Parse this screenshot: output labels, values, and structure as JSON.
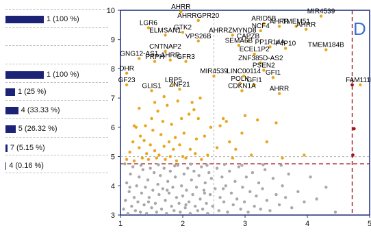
{
  "summary_bars": [
    {
      "label": "1 (100 %)",
      "fraction": 1.0
    },
    {
      "label": "1 (100 %)",
      "fraction": 1.0
    },
    {
      "label": "1 (25 %)",
      "fraction": 0.25
    },
    {
      "label": "4 (33.33 %)",
      "fraction": 0.3333
    },
    {
      "label": "5 (26.32 %)",
      "fraction": 0.2632
    },
    {
      "label": "7 (5.15 %)",
      "fraction": 0.0515
    },
    {
      "label": "4 (0.16 %)",
      "fraction": 0.0016
    }
  ],
  "chart_data": {
    "type": "scatter",
    "panel_label": "D",
    "xlim": [
      1,
      5
    ],
    "ylim": [
      3,
      10
    ],
    "x_ticks": [
      "1",
      "2",
      "3",
      "4",
      "5"
    ],
    "y_ticks": [
      "3",
      "4",
      "5",
      "6",
      "7",
      "8",
      "9",
      "10"
    ],
    "threshold_x": 4.72,
    "threshold_y": 4.75,
    "reference_x": 2.5,
    "reference_y": 5.0,
    "colors": {
      "labeled": "#e8a61b",
      "significant": "#e8a61b",
      "background": "#a8a8a8",
      "highlight": "#a01519",
      "threshold": "#a01519",
      "reference": "#b0b0b0",
      "frame": "#1a2a7a"
    },
    "labeled_points": [
      {
        "name": "AHRR",
        "x": 1.97,
        "y": 9.95
      },
      {
        "name": "AHRRGPR20",
        "x": 2.25,
        "y": 9.65
      },
      {
        "name": "LGR6",
        "x": 1.45,
        "y": 9.4
      },
      {
        "name": "ELMSAN1",
        "x": 1.72,
        "y": 9.15
      },
      {
        "name": "GTK2",
        "x": 2.0,
        "y": 9.25
      },
      {
        "name": "VPS26B",
        "x": 2.25,
        "y": 8.95
      },
      {
        "name": "AHRRZMYND8",
        "x": 2.8,
        "y": 9.15
      },
      {
        "name": "ARID5B",
        "x": 3.3,
        "y": 9.55
      },
      {
        "name": "AHRR",
        "x": 3.55,
        "y": 9.45
      },
      {
        "name": "NCF4",
        "x": 3.25,
        "y": 9.3
      },
      {
        "name": "TMEM51",
        "x": 3.82,
        "y": 9.45
      },
      {
        "name": "AHRR",
        "x": 3.98,
        "y": 9.35
      },
      {
        "name": "MIR4539",
        "x": 4.22,
        "y": 9.8
      },
      {
        "name": "CAPZB",
        "x": 3.05,
        "y": 8.95
      },
      {
        "name": "SEMA6B",
        "x": 2.9,
        "y": 8.8
      },
      {
        "name": "PP1R14A",
        "x": 3.4,
        "y": 8.75
      },
      {
        "name": "P4P10",
        "x": 3.65,
        "y": 8.7
      },
      {
        "name": "ECEL1P2",
        "x": 3.15,
        "y": 8.5
      },
      {
        "name": "TMEM184B",
        "x": 4.3,
        "y": 8.65
      },
      {
        "name": "CNTNAP2",
        "x": 1.72,
        "y": 8.6
      },
      {
        "name": "GNG12-AS1",
        "x": 1.3,
        "y": 8.35
      },
      {
        "name": "PRPH",
        "x": 1.55,
        "y": 8.25
      },
      {
        "name": "AHRR",
        "x": 1.8,
        "y": 8.3
      },
      {
        "name": "GFR3",
        "x": 2.05,
        "y": 8.25
      },
      {
        "name": "ZNF385D-AS2",
        "x": 3.25,
        "y": 8.2
      },
      {
        "name": "PSEN2",
        "x": 3.3,
        "y": 7.95
      },
      {
        "name": "DHR",
        "x": 1.1,
        "y": 7.85
      },
      {
        "name": "MIR4539",
        "x": 2.5,
        "y": 7.75
      },
      {
        "name": "LINC00114",
        "x": 2.98,
        "y": 7.75
      },
      {
        "name": "GFI1",
        "x": 3.45,
        "y": 7.7
      },
      {
        "name": "POLK",
        "x": 2.92,
        "y": 7.5
      },
      {
        "name": "GFI1",
        "x": 3.15,
        "y": 7.45
      },
      {
        "name": "GF23",
        "x": 1.1,
        "y": 7.45
      },
      {
        "name": "LRP5",
        "x": 1.85,
        "y": 7.45
      },
      {
        "name": "ZNF21",
        "x": 1.95,
        "y": 7.3
      },
      {
        "name": "GLIS1",
        "x": 1.5,
        "y": 7.25
      },
      {
        "name": "CDKN1A",
        "x": 2.95,
        "y": 7.25
      },
      {
        "name": "AHRR",
        "x": 3.55,
        "y": 7.15
      },
      {
        "name": "FAM111B",
        "x": 4.85,
        "y": 7.45
      }
    ],
    "significant_points": [
      [
        1.1,
        4.9
      ],
      [
        1.15,
        5.15
      ],
      [
        1.2,
        5.5
      ],
      [
        1.22,
        4.85
      ],
      [
        1.25,
        6.0
      ],
      [
        1.3,
        5.3
      ],
      [
        1.32,
        5.7
      ],
      [
        1.35,
        4.95
      ],
      [
        1.38,
        5.55
      ],
      [
        1.4,
        6.05
      ],
      [
        1.42,
        5.1
      ],
      [
        1.45,
        4.9
      ],
      [
        1.48,
        5.4
      ],
      [
        1.5,
        6.3
      ],
      [
        1.52,
        5.9
      ],
      [
        1.55,
        5.2
      ],
      [
        1.58,
        4.95
      ],
      [
        1.6,
        6.55
      ],
      [
        1.62,
        5.05
      ],
      [
        1.65,
        5.75
      ],
      [
        1.68,
        6.2
      ],
      [
        1.7,
        5.35
      ],
      [
        1.72,
        4.9
      ],
      [
        1.75,
        6.75
      ],
      [
        1.78,
        5.5
      ],
      [
        1.8,
        5.0
      ],
      [
        1.82,
        6.1
      ],
      [
        1.85,
        5.25
      ],
      [
        1.88,
        5.65
      ],
      [
        1.9,
        4.85
      ],
      [
        1.92,
        6.9
      ],
      [
        1.95,
        5.4
      ],
      [
        1.98,
        6.3
      ],
      [
        2.0,
        5.0
      ],
      [
        2.02,
        5.8
      ],
      [
        2.05,
        4.95
      ],
      [
        2.1,
        6.45
      ],
      [
        2.12,
        5.25
      ],
      [
        2.15,
        6.85
      ],
      [
        2.2,
        5.1
      ],
      [
        2.22,
        5.6
      ],
      [
        2.25,
        6.3
      ],
      [
        2.3,
        4.9
      ],
      [
        2.35,
        5.7
      ],
      [
        2.4,
        5.05
      ],
      [
        2.45,
        6.0
      ],
      [
        2.55,
        5.3
      ],
      [
        2.6,
        6.05
      ],
      [
        2.65,
        6.3
      ],
      [
        2.7,
        6.2
      ],
      [
        2.75,
        5.5
      ],
      [
        2.8,
        4.95
      ],
      [
        2.85,
        5.25
      ],
      [
        2.95,
        5.8
      ],
      [
        3.0,
        6.4
      ],
      [
        3.1,
        5.05
      ],
      [
        3.2,
        6.25
      ],
      [
        3.35,
        5.5
      ],
      [
        3.5,
        6.15
      ],
      [
        3.6,
        4.95
      ],
      [
        1.3,
        6.65
      ],
      [
        1.55,
        6.85
      ],
      [
        1.7,
        7.05
      ],
      [
        2.18,
        6.6
      ],
      [
        2.28,
        7.0
      ],
      [
        3.95,
        5.05
      ],
      [
        1.22,
        6.05
      ]
    ],
    "background_points": [
      [
        1.05,
        3.2
      ],
      [
        1.08,
        3.5
      ],
      [
        1.1,
        4.1
      ],
      [
        1.12,
        3.05
      ],
      [
        1.14,
        3.8
      ],
      [
        1.16,
        4.4
      ],
      [
        1.18,
        3.3
      ],
      [
        1.2,
        4.65
      ],
      [
        1.22,
        3.6
      ],
      [
        1.24,
        3.15
      ],
      [
        1.26,
        4.0
      ],
      [
        1.28,
        3.45
      ],
      [
        1.3,
        4.3
      ],
      [
        1.32,
        3.1
      ],
      [
        1.34,
        3.75
      ],
      [
        1.36,
        4.55
      ],
      [
        1.38,
        3.35
      ],
      [
        1.4,
        3.95
      ],
      [
        1.42,
        3.05
      ],
      [
        1.44,
        4.2
      ],
      [
        1.46,
        3.6
      ],
      [
        1.48,
        4.6
      ],
      [
        1.5,
        3.25
      ],
      [
        1.52,
        3.85
      ],
      [
        1.54,
        4.45
      ],
      [
        1.56,
        3.4
      ],
      [
        1.58,
        3.1
      ],
      [
        1.6,
        4.05
      ],
      [
        1.62,
        3.7
      ],
      [
        1.64,
        4.35
      ],
      [
        1.66,
        3.2
      ],
      [
        1.68,
        3.9
      ],
      [
        1.7,
        4.6
      ],
      [
        1.72,
        3.5
      ],
      [
        1.74,
        3.05
      ],
      [
        1.76,
        4.15
      ],
      [
        1.78,
        3.75
      ],
      [
        1.8,
        4.5
      ],
      [
        1.82,
        3.3
      ],
      [
        1.84,
        3.95
      ],
      [
        1.86,
        3.15
      ],
      [
        1.88,
        4.3
      ],
      [
        1.9,
        3.6
      ],
      [
        1.92,
        4.7
      ],
      [
        1.94,
        3.4
      ],
      [
        1.96,
        3.1
      ],
      [
        1.98,
        4.0
      ],
      [
        2.0,
        3.65
      ],
      [
        2.02,
        4.4
      ],
      [
        2.04,
        3.25
      ],
      [
        2.06,
        3.85
      ],
      [
        2.08,
        4.6
      ],
      [
        2.1,
        3.45
      ],
      [
        2.12,
        3.05
      ],
      [
        2.14,
        4.2
      ],
      [
        2.16,
        3.7
      ],
      [
        2.18,
        4.5
      ],
      [
        2.2,
        3.3
      ],
      [
        2.22,
        3.95
      ],
      [
        2.24,
        3.15
      ],
      [
        2.26,
        4.35
      ],
      [
        2.28,
        3.55
      ],
      [
        2.3,
        4.65
      ],
      [
        2.32,
        3.2
      ],
      [
        2.34,
        3.85
      ],
      [
        2.36,
        4.1
      ],
      [
        2.38,
        3.4
      ],
      [
        2.4,
        3.05
      ],
      [
        2.42,
        4.45
      ],
      [
        2.44,
        3.7
      ],
      [
        2.46,
        4.25
      ],
      [
        2.48,
        3.3
      ],
      [
        2.52,
        3.9
      ],
      [
        2.55,
        4.6
      ],
      [
        2.58,
        3.15
      ],
      [
        2.6,
        3.6
      ],
      [
        2.63,
        4.3
      ],
      [
        2.66,
        3.45
      ],
      [
        2.69,
        4.0
      ],
      [
        2.72,
        3.1
      ],
      [
        2.75,
        4.5
      ],
      [
        2.78,
        3.75
      ],
      [
        2.81,
        3.35
      ],
      [
        2.84,
        4.15
      ],
      [
        2.87,
        3.55
      ],
      [
        2.9,
        4.65
      ],
      [
        2.93,
        3.2
      ],
      [
        2.96,
        3.95
      ],
      [
        2.99,
        3.45
      ],
      [
        3.02,
        4.3
      ],
      [
        3.05,
        3.1
      ],
      [
        3.08,
        3.8
      ],
      [
        3.12,
        4.45
      ],
      [
        3.15,
        3.3
      ],
      [
        3.18,
        3.65
      ],
      [
        3.22,
        4.1
      ],
      [
        3.25,
        3.2
      ],
      [
        3.28,
        3.9
      ],
      [
        3.32,
        4.55
      ],
      [
        3.35,
        3.5
      ],
      [
        3.4,
        3.15
      ],
      [
        3.45,
        4.25
      ],
      [
        3.5,
        3.7
      ],
      [
        3.55,
        3.35
      ],
      [
        3.6,
        4.0
      ],
      [
        3.65,
        3.6
      ],
      [
        3.7,
        4.4
      ],
      [
        3.75,
        3.25
      ],
      [
        3.85,
        3.8
      ],
      [
        3.95,
        3.45
      ],
      [
        4.05,
        4.3
      ],
      [
        4.15,
        3.55
      ],
      [
        4.3,
        3.95
      ],
      [
        4.45,
        3.1
      ],
      [
        1.07,
        4.75
      ],
      [
        1.33,
        4.7
      ],
      [
        1.61,
        4.72
      ],
      [
        1.87,
        4.68
      ],
      [
        2.13,
        4.74
      ],
      [
        2.39,
        4.7
      ],
      [
        2.67,
        4.73
      ],
      [
        2.95,
        4.7
      ],
      [
        3.29,
        4.72
      ],
      [
        3.58,
        4.7
      ],
      [
        1.15,
        3.95
      ],
      [
        1.45,
        3.45
      ],
      [
        1.75,
        3.85
      ],
      [
        2.05,
        3.35
      ],
      [
        2.35,
        3.75
      ],
      [
        2.65,
        3.9
      ]
    ],
    "highlight_points": [
      [
        4.72,
        7.45
      ],
      [
        4.75,
        5.95
      ],
      [
        4.73,
        5.05
      ]
    ]
  }
}
